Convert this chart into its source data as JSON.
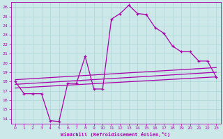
{
  "xlabel": "Windchill (Refroidissement éolien,°C)",
  "bg_color": "#cce8e8",
  "grid_color": "#aad4d4",
  "line_color": "#aa00aa",
  "xlim": [
    -0.5,
    23.5
  ],
  "ylim": [
    13.5,
    26.5
  ],
  "xticks": [
    0,
    1,
    2,
    3,
    4,
    5,
    6,
    7,
    8,
    9,
    10,
    11,
    12,
    13,
    14,
    15,
    16,
    17,
    18,
    19,
    20,
    21,
    22,
    23
  ],
  "yticks": [
    14,
    15,
    16,
    17,
    18,
    19,
    20,
    21,
    22,
    23,
    24,
    25,
    26
  ],
  "line1_x": [
    0,
    1,
    2,
    3,
    4,
    5,
    6,
    7,
    8,
    9,
    10,
    11,
    12,
    13,
    14,
    15,
    16,
    17,
    18,
    19,
    20,
    21,
    22,
    23
  ],
  "line1_y": [
    18.0,
    16.7,
    16.7,
    16.7,
    13.8,
    13.7,
    17.8,
    17.8,
    20.7,
    17.2,
    17.2,
    24.7,
    25.3,
    26.2,
    25.3,
    25.2,
    23.8,
    23.2,
    21.8,
    21.2,
    21.2,
    20.2,
    20.2,
    18.5
  ],
  "line2_x": [
    0,
    23
  ],
  "line2_y": [
    17.3,
    18.5
  ],
  "line3_x": [
    0,
    23
  ],
  "line3_y": [
    17.7,
    19.0
  ],
  "line4_x": [
    0,
    23
  ],
  "line4_y": [
    18.2,
    19.5
  ],
  "label_fontsize": 5,
  "tick_fontsize": 4.5
}
